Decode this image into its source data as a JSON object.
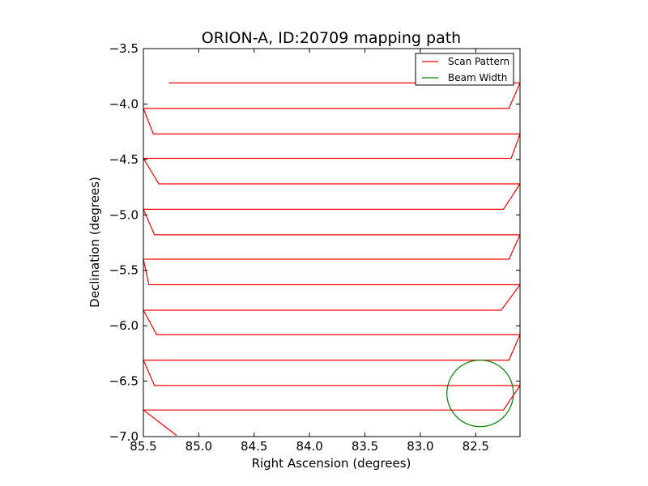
{
  "chart_data": {
    "type": "line",
    "title": "ORION-A, ID:20709 mapping path",
    "xlabel": "Right Ascension (degrees)",
    "ylabel": "Declination (degrees)",
    "xlim": [
      85.5,
      82.1
    ],
    "ylim": [
      -7.0,
      -3.5
    ],
    "x_ticks": [
      85.5,
      85.0,
      84.5,
      84.0,
      83.5,
      83.0,
      82.5
    ],
    "x_tick_labels": [
      "85.5",
      "85.0",
      "84.5",
      "84.0",
      "83.5",
      "83.0",
      "82.5"
    ],
    "y_ticks": [
      -3.5,
      -4.0,
      -4.5,
      -5.0,
      -5.5,
      -6.0,
      -6.5,
      -7.0
    ],
    "y_tick_labels": [
      "−3.5",
      "−4.0",
      "−4.5",
      "−5.0",
      "−5.5",
      "−6.0",
      "−6.5",
      "−7.0"
    ],
    "grid": false,
    "legend_position": "top-right",
    "series": [
      {
        "name": "Scan Pattern",
        "color": "#ff0000",
        "x": [
          85.27,
          82.1,
          82.2,
          85.5,
          85.41,
          82.1,
          82.18,
          85.5,
          85.36,
          82.1,
          82.25,
          85.5,
          85.4,
          82.1,
          82.2,
          85.5,
          85.45,
          82.1,
          82.27,
          85.5,
          85.38,
          82.1,
          82.2,
          85.5,
          85.4,
          82.1,
          82.25,
          85.5,
          85.2
        ],
        "y": [
          -3.81,
          -3.81,
          -4.04,
          -4.04,
          -4.27,
          -4.27,
          -4.49,
          -4.49,
          -4.72,
          -4.72,
          -4.95,
          -4.95,
          -5.18,
          -5.18,
          -5.4,
          -5.4,
          -5.63,
          -5.63,
          -5.86,
          -5.86,
          -6.08,
          -6.08,
          -6.31,
          -6.31,
          -6.54,
          -6.54,
          -6.76,
          -6.76,
          -6.99
        ]
      }
    ],
    "beam": {
      "name": "Beam Width",
      "color": "#008000",
      "center": [
        82.46,
        -6.61
      ],
      "radius_deg": 0.3
    }
  }
}
